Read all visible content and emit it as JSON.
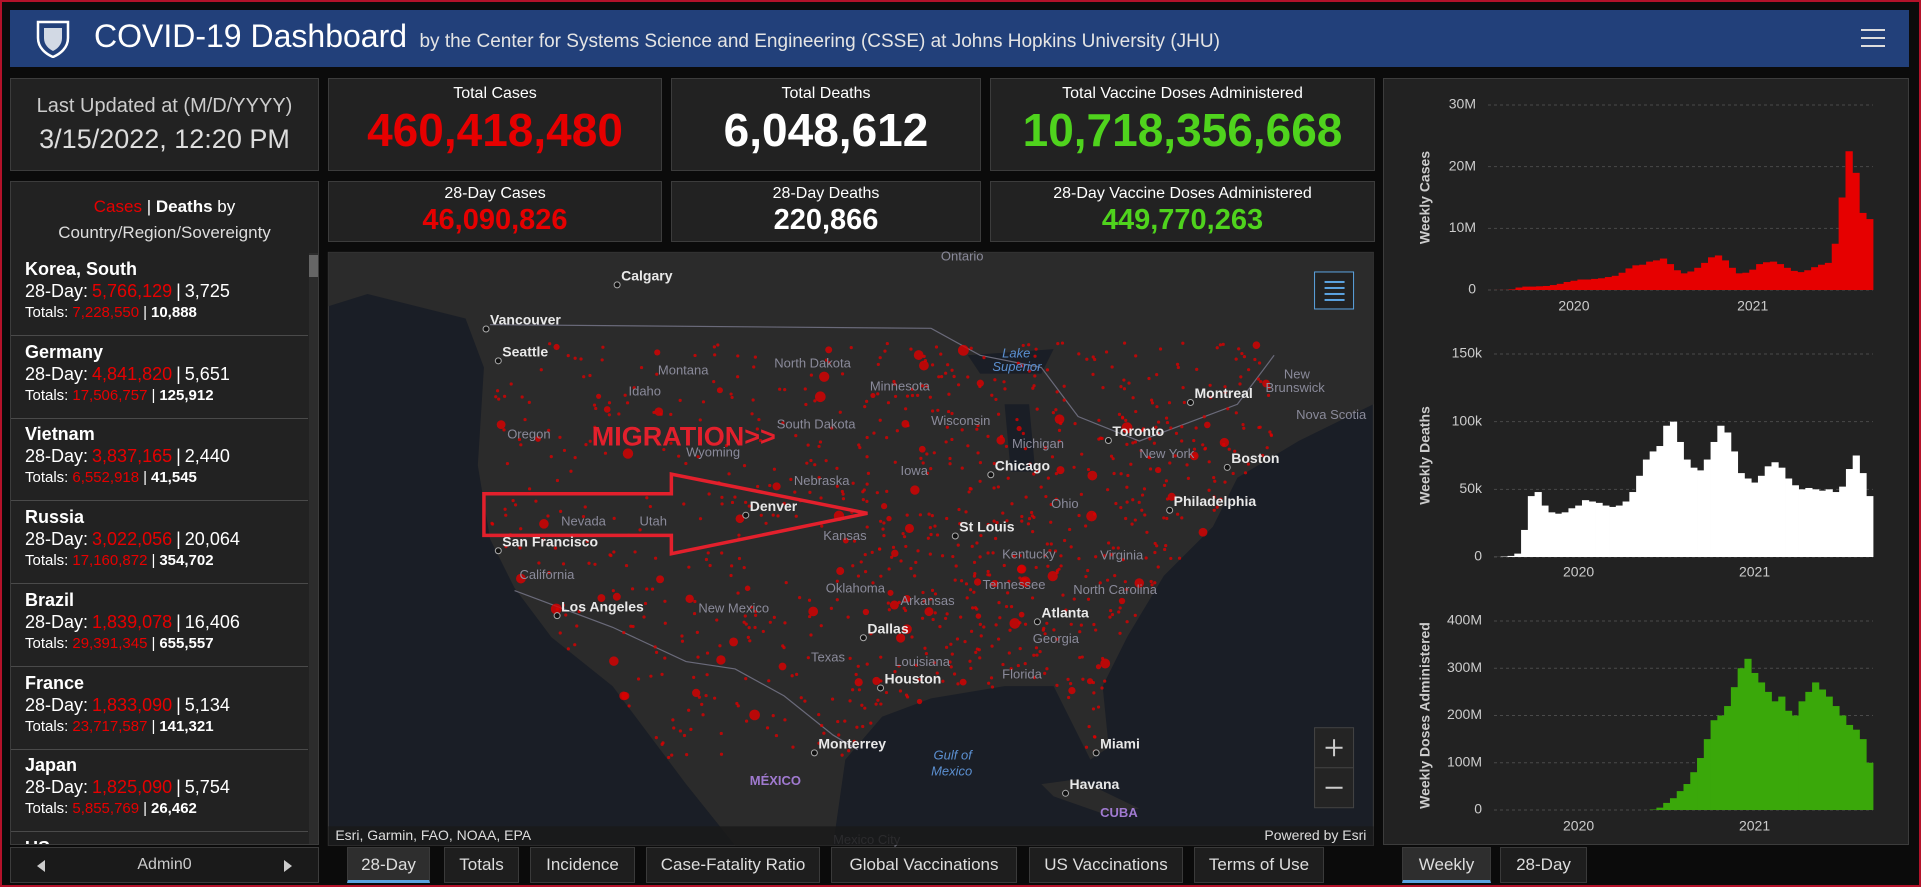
{
  "header": {
    "title": "COVID-19 Dashboard",
    "subtitle": "by the Center for Systems Science and Engineering (CSSE) at Johns Hopkins University (JHU)"
  },
  "last_updated": {
    "label": "Last Updated at (M/D/YYYY)",
    "value": "3/15/2022, 12:20 PM"
  },
  "totals": {
    "cases": {
      "label": "Total Cases",
      "value": "460,418,480"
    },
    "deaths": {
      "label": "Total Deaths",
      "value": "6,048,612"
    },
    "vaccines": {
      "label": "Total Vaccine Doses Administered",
      "value": "10,718,356,668"
    }
  },
  "day28": {
    "cases": {
      "label": "28-Day Cases",
      "value": "46,090,826"
    },
    "deaths": {
      "label": "28-Day Deaths",
      "value": "220,866"
    },
    "vaccines": {
      "label": "28-Day Vaccine Doses Administered",
      "value": "449,770,263"
    }
  },
  "country_list": {
    "title": {
      "cases": "Cases",
      "separator": "|",
      "deaths": "Deaths",
      "by": "by",
      "subtitle": "Country/Region/Sovereignty"
    },
    "period_label": "28-Day:",
    "totals_label": "Totals:",
    "rows": [
      {
        "name": "Korea, South",
        "cases_28": "5,766,129",
        "deaths_28": "3,725",
        "cases_total": "7,228,550",
        "deaths_total": "10,888"
      },
      {
        "name": "Germany",
        "cases_28": "4,841,820",
        "deaths_28": "5,651",
        "cases_total": "17,506,757",
        "deaths_total": "125,912"
      },
      {
        "name": "Vietnam",
        "cases_28": "3,837,165",
        "deaths_28": "2,440",
        "cases_total": "6,552,918",
        "deaths_total": "41,545"
      },
      {
        "name": "Russia",
        "cases_28": "3,022,056",
        "deaths_28": "20,064",
        "cases_total": "17,160,872",
        "deaths_total": "354,702"
      },
      {
        "name": "Brazil",
        "cases_28": "1,839,078",
        "deaths_28": "16,406",
        "cases_total": "29,391,345",
        "deaths_total": "655,557"
      },
      {
        "name": "France",
        "cases_28": "1,833,090",
        "deaths_28": "5,134",
        "cases_total": "23,717,587",
        "deaths_total": "141,321"
      },
      {
        "name": "Japan",
        "cases_28": "1,825,090",
        "deaths_28": "5,754",
        "cases_total": "5,855,769",
        "deaths_total": "26,462"
      }
    ],
    "partial_row": "US",
    "selector": "Admin0"
  },
  "map": {
    "annotation": "MIGRATION>>",
    "labels": [
      "Ontario",
      "Calgary",
      "Vancouver",
      "Seattle",
      "Montana",
      "North Dakota",
      "Lake",
      "Superior",
      "Minnesota",
      "Idaho",
      "Montreal",
      "New",
      "Brunswick",
      "Oregon",
      "South Dakota",
      "Wisconsin",
      "Nova Scotia",
      "Toronto",
      "Michigan",
      "Wyoming",
      "New York",
      "Boston",
      "Chicago",
      "Iowa",
      "Nebraska",
      "Denver",
      "Ohio",
      "Philadelphia",
      "Nevada",
      "Utah",
      "Kansas",
      "St Louis",
      "San Francisco",
      "Kentucky",
      "Virginia",
      "California",
      "Tennessee",
      "Oklahoma",
      "North Carolina",
      "Arkansas",
      "Los Angeles",
      "New Mexico",
      "Atlanta",
      "Dallas",
      "Georgia",
      "Texas",
      "Louisiana",
      "Florida",
      "Houston",
      "Miami",
      "Monterrey",
      "Gulf of",
      "Mexico",
      "MÉXICO",
      "Havana",
      "CUBA",
      "Mexico City"
    ],
    "attribution": "Esri, Garmin, FAO, NOAA, EPA",
    "powered_by": "Powered by Esri"
  },
  "tabs": [
    "28-Day",
    "Totals",
    "Incidence",
    "Case-Fatality Ratio",
    "Global Vaccinations",
    "US Vaccinations",
    "Terms of Use"
  ],
  "chart_tabs": [
    "Weekly",
    "28-Day"
  ],
  "chart_data": [
    {
      "type": "bar",
      "y_label": "Weekly Cases",
      "color": "#e60000",
      "grid": true,
      "categories": [
        null,
        null,
        null,
        null,
        null,
        null,
        null,
        null,
        null,
        null,
        null,
        null,
        "2020",
        null,
        null,
        null,
        null,
        null,
        null,
        null,
        null,
        null,
        null,
        null,
        null,
        null,
        null,
        null,
        null,
        null,
        null,
        null,
        null,
        null,
        null,
        null,
        null,
        null,
        "2021",
        null,
        null,
        null,
        null,
        null,
        null,
        null,
        null,
        null,
        null,
        null,
        null,
        null,
        null,
        null,
        null,
        null
      ],
      "values": [
        2000,
        10000,
        20000,
        100000,
        400000,
        550000,
        550000,
        600000,
        650000,
        800000,
        1000000,
        1300000,
        1500000,
        1700000,
        1700000,
        1800000,
        1900000,
        2100000,
        2300000,
        2800000,
        3500000,
        4000000,
        4100000,
        4600000,
        4800000,
        5100000,
        4200000,
        3200000,
        2700000,
        3000000,
        3600000,
        4400000,
        5300000,
        5600000,
        4800000,
        3600000,
        2700000,
        2800000,
        3300000,
        4200000,
        4500000,
        4600000,
        4200000,
        3600000,
        3100000,
        2900000,
        3200000,
        3700000,
        4100000,
        4400000,
        7500000,
        15000000,
        22500000,
        19000000,
        12500000,
        11500000
      ],
      "ylim": [
        0,
        30000000
      ],
      "yticks": [
        0,
        {
          "value": 10000000,
          "label": "10M"
        },
        {
          "value": 20000000,
          "label": "20M"
        },
        {
          "value": 30000000,
          "label": "30M"
        }
      ]
    },
    {
      "type": "bar",
      "y_label": "Weekly Deaths",
      "color": "#ffffff",
      "grid": true,
      "categories": [
        null,
        null,
        null,
        null,
        null,
        null,
        null,
        null,
        null,
        null,
        null,
        null,
        "2020",
        null,
        null,
        null,
        null,
        null,
        null,
        null,
        null,
        null,
        null,
        null,
        null,
        null,
        null,
        null,
        null,
        null,
        null,
        null,
        null,
        null,
        null,
        null,
        null,
        null,
        "2021",
        null,
        null,
        null,
        null,
        null,
        null,
        null,
        null,
        null,
        null,
        null,
        null,
        null,
        null,
        null,
        null,
        null
      ],
      "values": [
        50,
        300,
        800,
        2500,
        20000,
        45000,
        48000,
        38000,
        33000,
        32000,
        33000,
        36000,
        38000,
        42000,
        41000,
        40000,
        38000,
        37000,
        38000,
        41000,
        48000,
        60000,
        72000,
        78000,
        82000,
        97000,
        100000,
        85000,
        72000,
        66000,
        64000,
        72000,
        85000,
        97000,
        92000,
        78000,
        62000,
        58000,
        55000,
        60000,
        67000,
        70000,
        66000,
        58000,
        53000,
        50000,
        51000,
        50000,
        49000,
        50000,
        48000,
        52000,
        65000,
        75000,
        62000,
        45000
      ],
      "ylim": [
        0,
        150000
      ],
      "yticks": [
        0,
        {
          "value": 50000,
          "label": "50k"
        },
        {
          "value": 100000,
          "label": "100k"
        },
        {
          "value": 150000,
          "label": "150k"
        }
      ]
    },
    {
      "type": "bar",
      "y_label": "Weekly Doses Administered",
      "color": "#3aa80a",
      "grid": true,
      "categories": [
        null,
        null,
        null,
        null,
        null,
        null,
        null,
        null,
        null,
        null,
        null,
        null,
        "2020",
        null,
        null,
        null,
        null,
        null,
        null,
        null,
        null,
        null,
        null,
        null,
        null,
        null,
        null,
        null,
        null,
        null,
        null,
        null,
        null,
        null,
        null,
        null,
        null,
        null,
        "2021",
        null,
        null,
        null,
        null,
        null,
        null,
        null,
        null,
        null,
        null,
        null,
        null,
        null,
        null,
        null,
        null,
        null
      ],
      "values": [
        0,
        0,
        0,
        0,
        0,
        0,
        0,
        0,
        0,
        0,
        0,
        0,
        0,
        0,
        0,
        0,
        0,
        0,
        0,
        0,
        0,
        0,
        0,
        1000000,
        5000000,
        15000000,
        25000000,
        40000000,
        55000000,
        80000000,
        110000000,
        150000000,
        190000000,
        200000000,
        220000000,
        260000000,
        300000000,
        320000000,
        290000000,
        270000000,
        250000000,
        230000000,
        240000000,
        210000000,
        200000000,
        230000000,
        250000000,
        270000000,
        255000000,
        240000000,
        220000000,
        200000000,
        180000000,
        170000000,
        150000000,
        100000000
      ],
      "ylim": [
        0,
        400000000
      ],
      "yticks": [
        0,
        {
          "value": 100000000,
          "label": "100M"
        },
        {
          "value": 200000000,
          "label": "200M"
        },
        {
          "value": 300000000,
          "label": "300M"
        },
        {
          "value": 400000000,
          "label": "400M"
        }
      ]
    }
  ]
}
